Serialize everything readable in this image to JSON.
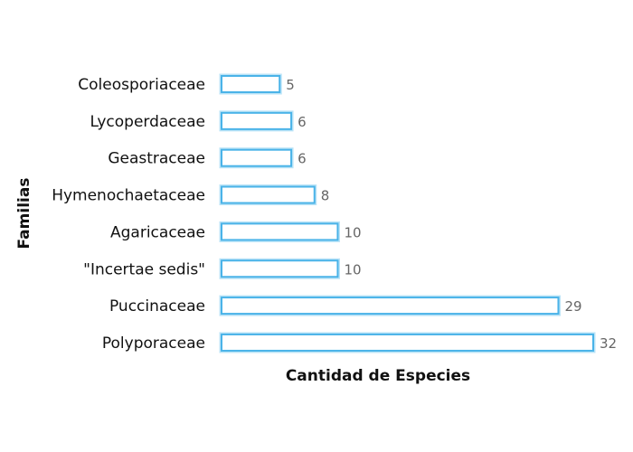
{
  "chart_data": {
    "type": "bar",
    "orientation": "horizontal",
    "categories": [
      "Coleosporiaceae",
      "Lycoperdaceae",
      "Geastraceae",
      "Hymenochaetaceae",
      "Agaricaceae",
      "\"Incertae sedis\"",
      "Puccinaceae",
      "Polyporaceae"
    ],
    "values": [
      5,
      6,
      6,
      8,
      10,
      10,
      29,
      32
    ],
    "value_labels": [
      "5",
      "6",
      "6",
      "8",
      "10",
      "10",
      "29",
      "32"
    ],
    "xlabel": "Cantidad de Especies",
    "ylabel": "Familias",
    "xlim": [
      0,
      32
    ],
    "grid": false,
    "legend": "none",
    "bar_color": "#4ab3e8"
  }
}
